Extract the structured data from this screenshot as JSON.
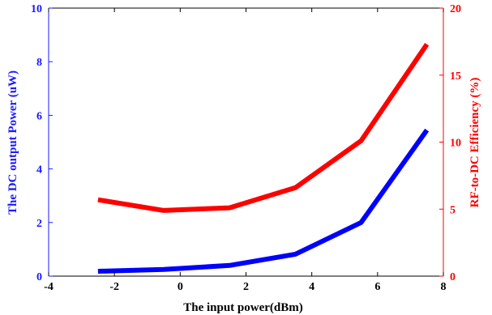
{
  "chart_data": {
    "type": "line",
    "xlabel": "The input power(dBm)",
    "ylabel_left": "The DC output Power (uW)",
    "ylabel_right": "RF-to-DC Efficiency (%)",
    "xlim": [
      -4,
      8
    ],
    "ylim_left": [
      0,
      10
    ],
    "ylim_right": [
      0,
      20
    ],
    "x_ticks": [
      "-4",
      "-2",
      "0",
      "2",
      "4",
      "6",
      "8"
    ],
    "y_left_ticks": [
      "0",
      "2",
      "4",
      "6",
      "8",
      "10"
    ],
    "y_right_ticks": [
      "0",
      "5",
      "10",
      "15",
      "20"
    ],
    "grid": false,
    "colors": {
      "left_axis": "#1a1aff",
      "right_axis": "#ff0000",
      "frame": "#000000"
    },
    "series": [
      {
        "axis": "left",
        "color": "#0000ff",
        "x": [
          -2.5,
          -0.5,
          1.5,
          3.5,
          5.5,
          7.5
        ],
        "y": [
          0.18,
          0.25,
          0.4,
          0.82,
          2.0,
          5.45
        ]
      },
      {
        "axis": "right",
        "color": "#ff0000",
        "x": [
          -2.5,
          -0.5,
          1.5,
          3.5,
          5.5,
          7.5
        ],
        "y": [
          5.7,
          4.9,
          5.1,
          6.6,
          10.1,
          17.3
        ]
      }
    ]
  }
}
